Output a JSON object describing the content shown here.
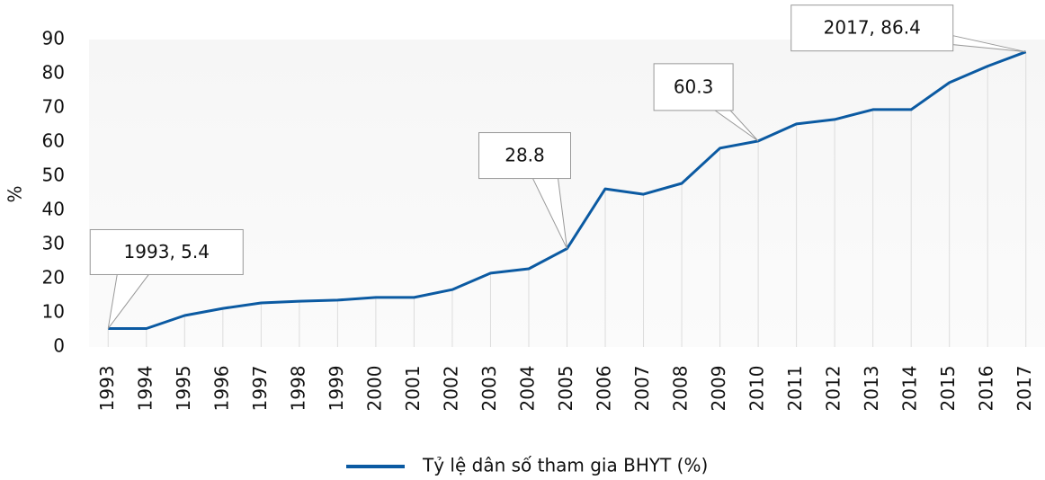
{
  "chart_data": {
    "type": "line",
    "ylabel": "%",
    "categories": [
      "1993",
      "1994",
      "1995",
      "1996",
      "1997",
      "1998",
      "1999",
      "2000",
      "2001",
      "2002",
      "2003",
      "2004",
      "2005",
      "2006",
      "2007",
      "2008",
      "2009",
      "2010",
      "2011",
      "2012",
      "2013",
      "2014",
      "2015",
      "2016",
      "2017"
    ],
    "series": [
      {
        "name": "Tỷ lệ dân số tham gia BHYT (%)",
        "color": "#0b5aa2",
        "values": [
          5.4,
          5.4,
          9.2,
          11.3,
          12.9,
          13.4,
          13.7,
          14.5,
          14.5,
          16.8,
          21.6,
          22.9,
          28.8,
          46.3,
          44.7,
          47.9,
          58.2,
          60.3,
          65.3,
          66.6,
          69.5,
          69.5,
          77.4,
          82.2,
          86.4
        ],
        "value_labels": [
          "1993, 5.4",
          null,
          null,
          null,
          null,
          null,
          null,
          null,
          null,
          null,
          null,
          null,
          "28.8",
          null,
          null,
          null,
          null,
          "60.3",
          null,
          null,
          null,
          null,
          null,
          null,
          "2017, 86.4"
        ]
      }
    ],
    "ylim": [
      0,
      90
    ],
    "yticks": [
      0,
      10,
      20,
      30,
      40,
      50,
      60,
      70,
      80,
      90
    ],
    "legend": "bottom"
  }
}
